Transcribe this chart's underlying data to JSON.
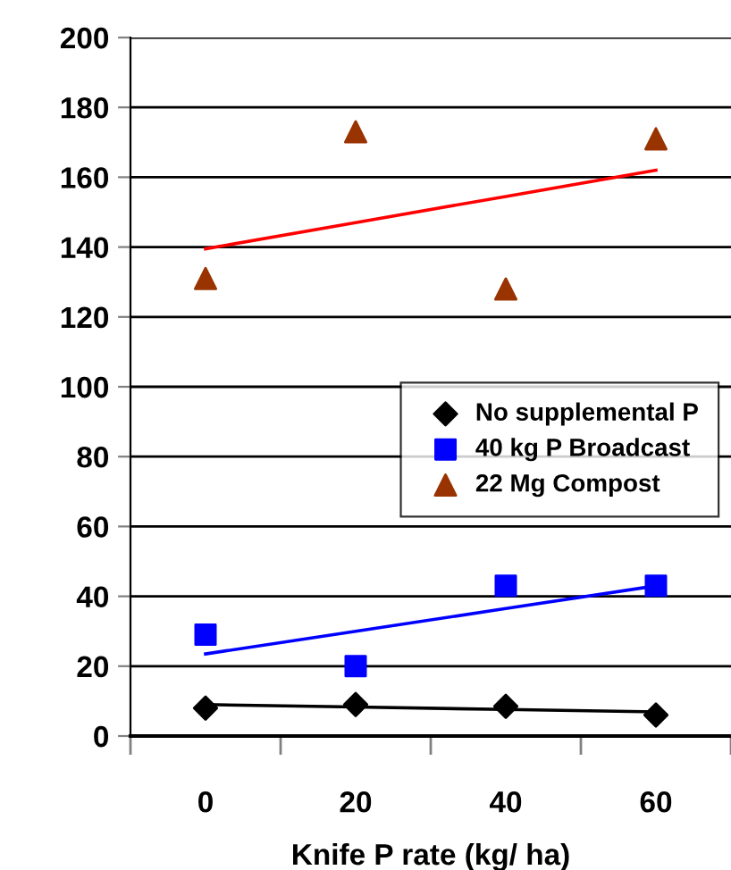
{
  "chart_data": {
    "type": "scatter",
    "xlabel": "Knife P rate (kg/ ha)",
    "categories": [
      "0",
      "20",
      "40",
      "60"
    ],
    "ylim": [
      0,
      200
    ],
    "yticks": [
      0,
      20,
      40,
      60,
      80,
      100,
      120,
      140,
      160,
      180,
      200
    ],
    "grid": "y",
    "legend": "right",
    "series": [
      {
        "name": "No supplemental P",
        "color": "#000000",
        "marker": "diamond",
        "values": [
          8,
          9,
          8.5,
          6
        ]
      },
      {
        "name": "40 kg P Broadcast",
        "color": "#0000ff",
        "marker": "square",
        "values": [
          29,
          20,
          43,
          43
        ]
      },
      {
        "name": "22 Mg Compost",
        "color": "#993300",
        "marker": "triangle",
        "values": [
          131,
          173,
          128,
          171
        ]
      },
      {
        "type": "line",
        "color": "#000000",
        "marker": "none",
        "values": [
          9,
          8.3,
          7.6,
          6.9
        ]
      },
      {
        "type": "line",
        "color": "#0000ff",
        "marker": "none",
        "values": [
          23.5,
          30,
          36.5,
          43
        ]
      },
      {
        "type": "line",
        "color": "#ff0000",
        "marker": "none",
        "values": [
          139.5,
          147,
          154.5,
          162
        ]
      }
    ]
  }
}
